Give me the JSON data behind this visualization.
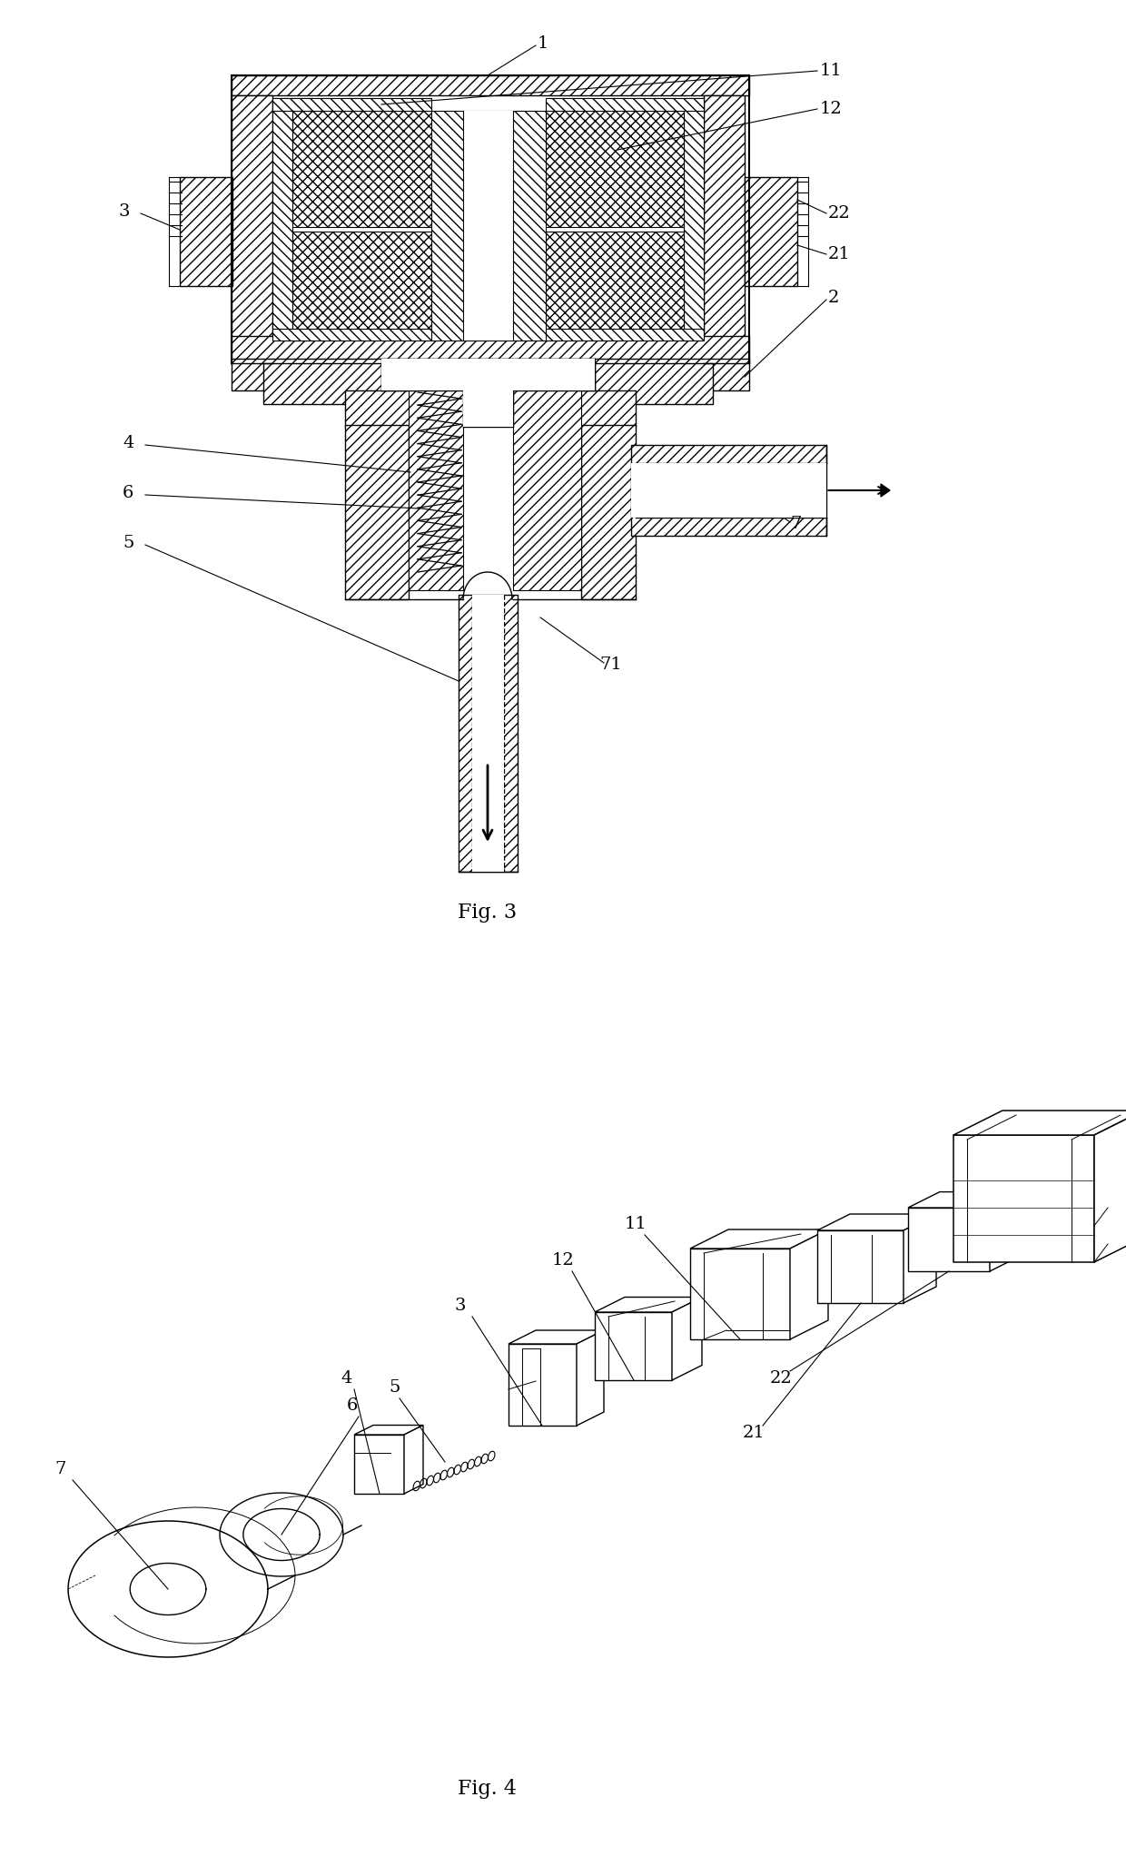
{
  "fig3_caption": "Fig. 3",
  "fig4_caption": "Fig. 4",
  "bg_color": "#ffffff",
  "line_color": "#000000",
  "line_width": 1.0
}
